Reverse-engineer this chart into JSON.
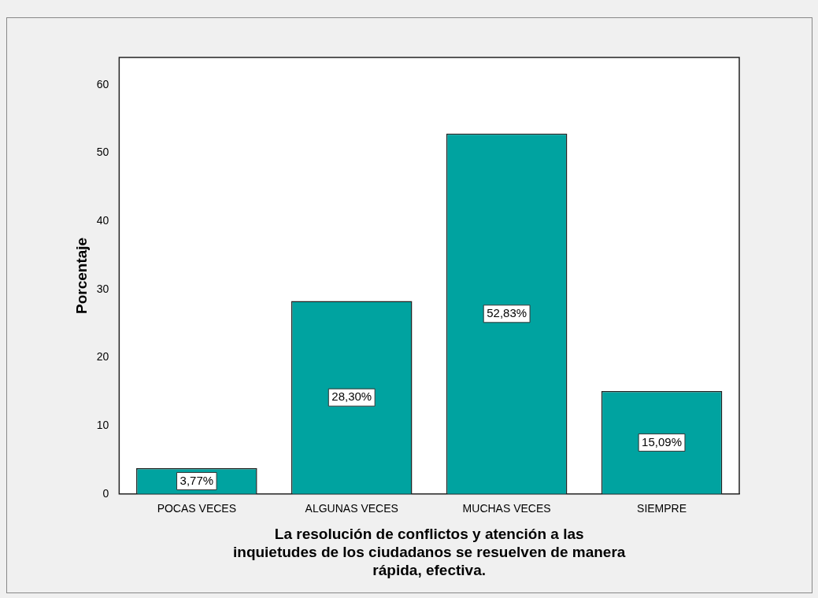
{
  "chart_data": {
    "type": "bar",
    "ylabel": "Porcentaje",
    "xlabel": "La resolución de conflictos y atención a las inquietudes de los ciudadanos se resuelven de manera rápida, efectiva.",
    "categories": [
      "POCAS VECES",
      "ALGUNAS VECES",
      "MUCHAS VECES",
      "SIEMPRE"
    ],
    "values": [
      3.77,
      28.3,
      52.83,
      15.09
    ],
    "value_labels": [
      "3,77%",
      "28,30%",
      "52,83%",
      "15,09%"
    ],
    "color": "#00a3a0",
    "ylim": [
      0,
      64
    ],
    "yticks": [
      0,
      10,
      20,
      30,
      40,
      50,
      60
    ],
    "grid": false,
    "legend": false
  }
}
